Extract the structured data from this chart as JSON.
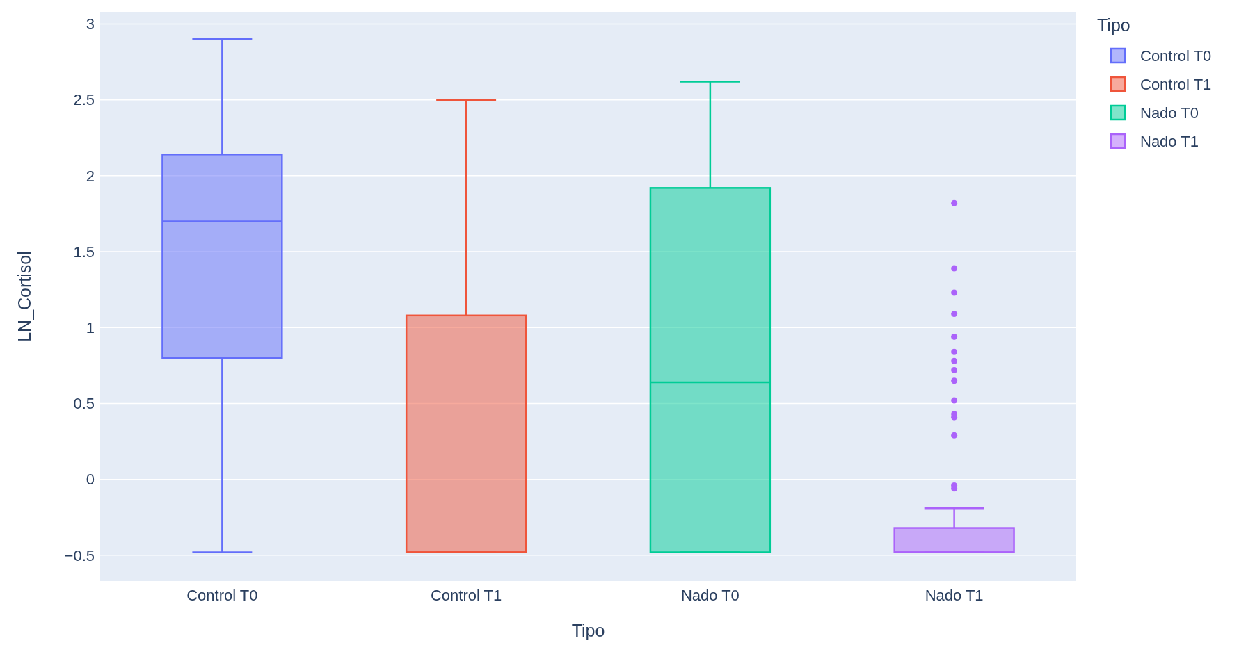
{
  "chart_data": {
    "type": "box",
    "xlabel": "Tipo",
    "ylabel": "LN_Cortisol",
    "legend_title": "Tipo",
    "categories": [
      "Control T0",
      "Control T1",
      "Nado T0",
      "Nado T1"
    ],
    "ylim": [
      -0.67,
      3.08
    ],
    "yticks": [
      {
        "value": -0.5,
        "label": "−0.5"
      },
      0,
      0.5,
      1,
      1.5,
      2,
      2.5,
      3
    ],
    "grid": "y",
    "legend": "top right",
    "series": [
      {
        "name": "Control T0",
        "color": "#636efa",
        "boxes": [
          {
            "low": -0.48,
            "q1": 0.8,
            "median": 1.7,
            "q3": 2.14,
            "high": 2.9
          },
          null,
          null,
          null
        ]
      },
      {
        "name": "Control T1",
        "color": "#ef553b",
        "boxes": [
          null,
          {
            "low": -0.48,
            "q1": -0.48,
            "median": -0.48,
            "q3": 1.08,
            "high": 2.5
          },
          null,
          null
        ]
      },
      {
        "name": "Nado T0",
        "color": "#00cc96",
        "boxes": [
          null,
          null,
          {
            "low": -0.48,
            "q1": -0.48,
            "median": 0.64,
            "q3": 1.92,
            "high": 2.62
          },
          null
        ]
      },
      {
        "name": "Nado T1",
        "color": "#ab63fa",
        "boxes": [
          null,
          null,
          null,
          {
            "low": -0.48,
            "q1": -0.48,
            "median": -0.48,
            "q3": -0.32,
            "high": -0.19,
            "outliers": [
              1.82,
              1.39,
              1.23,
              1.09,
              0.94,
              0.84,
              0.78,
              0.72,
              0.65,
              0.52,
              0.43,
              0.41,
              0.29,
              -0.04,
              -0.06
            ]
          }
        ]
      }
    ]
  }
}
